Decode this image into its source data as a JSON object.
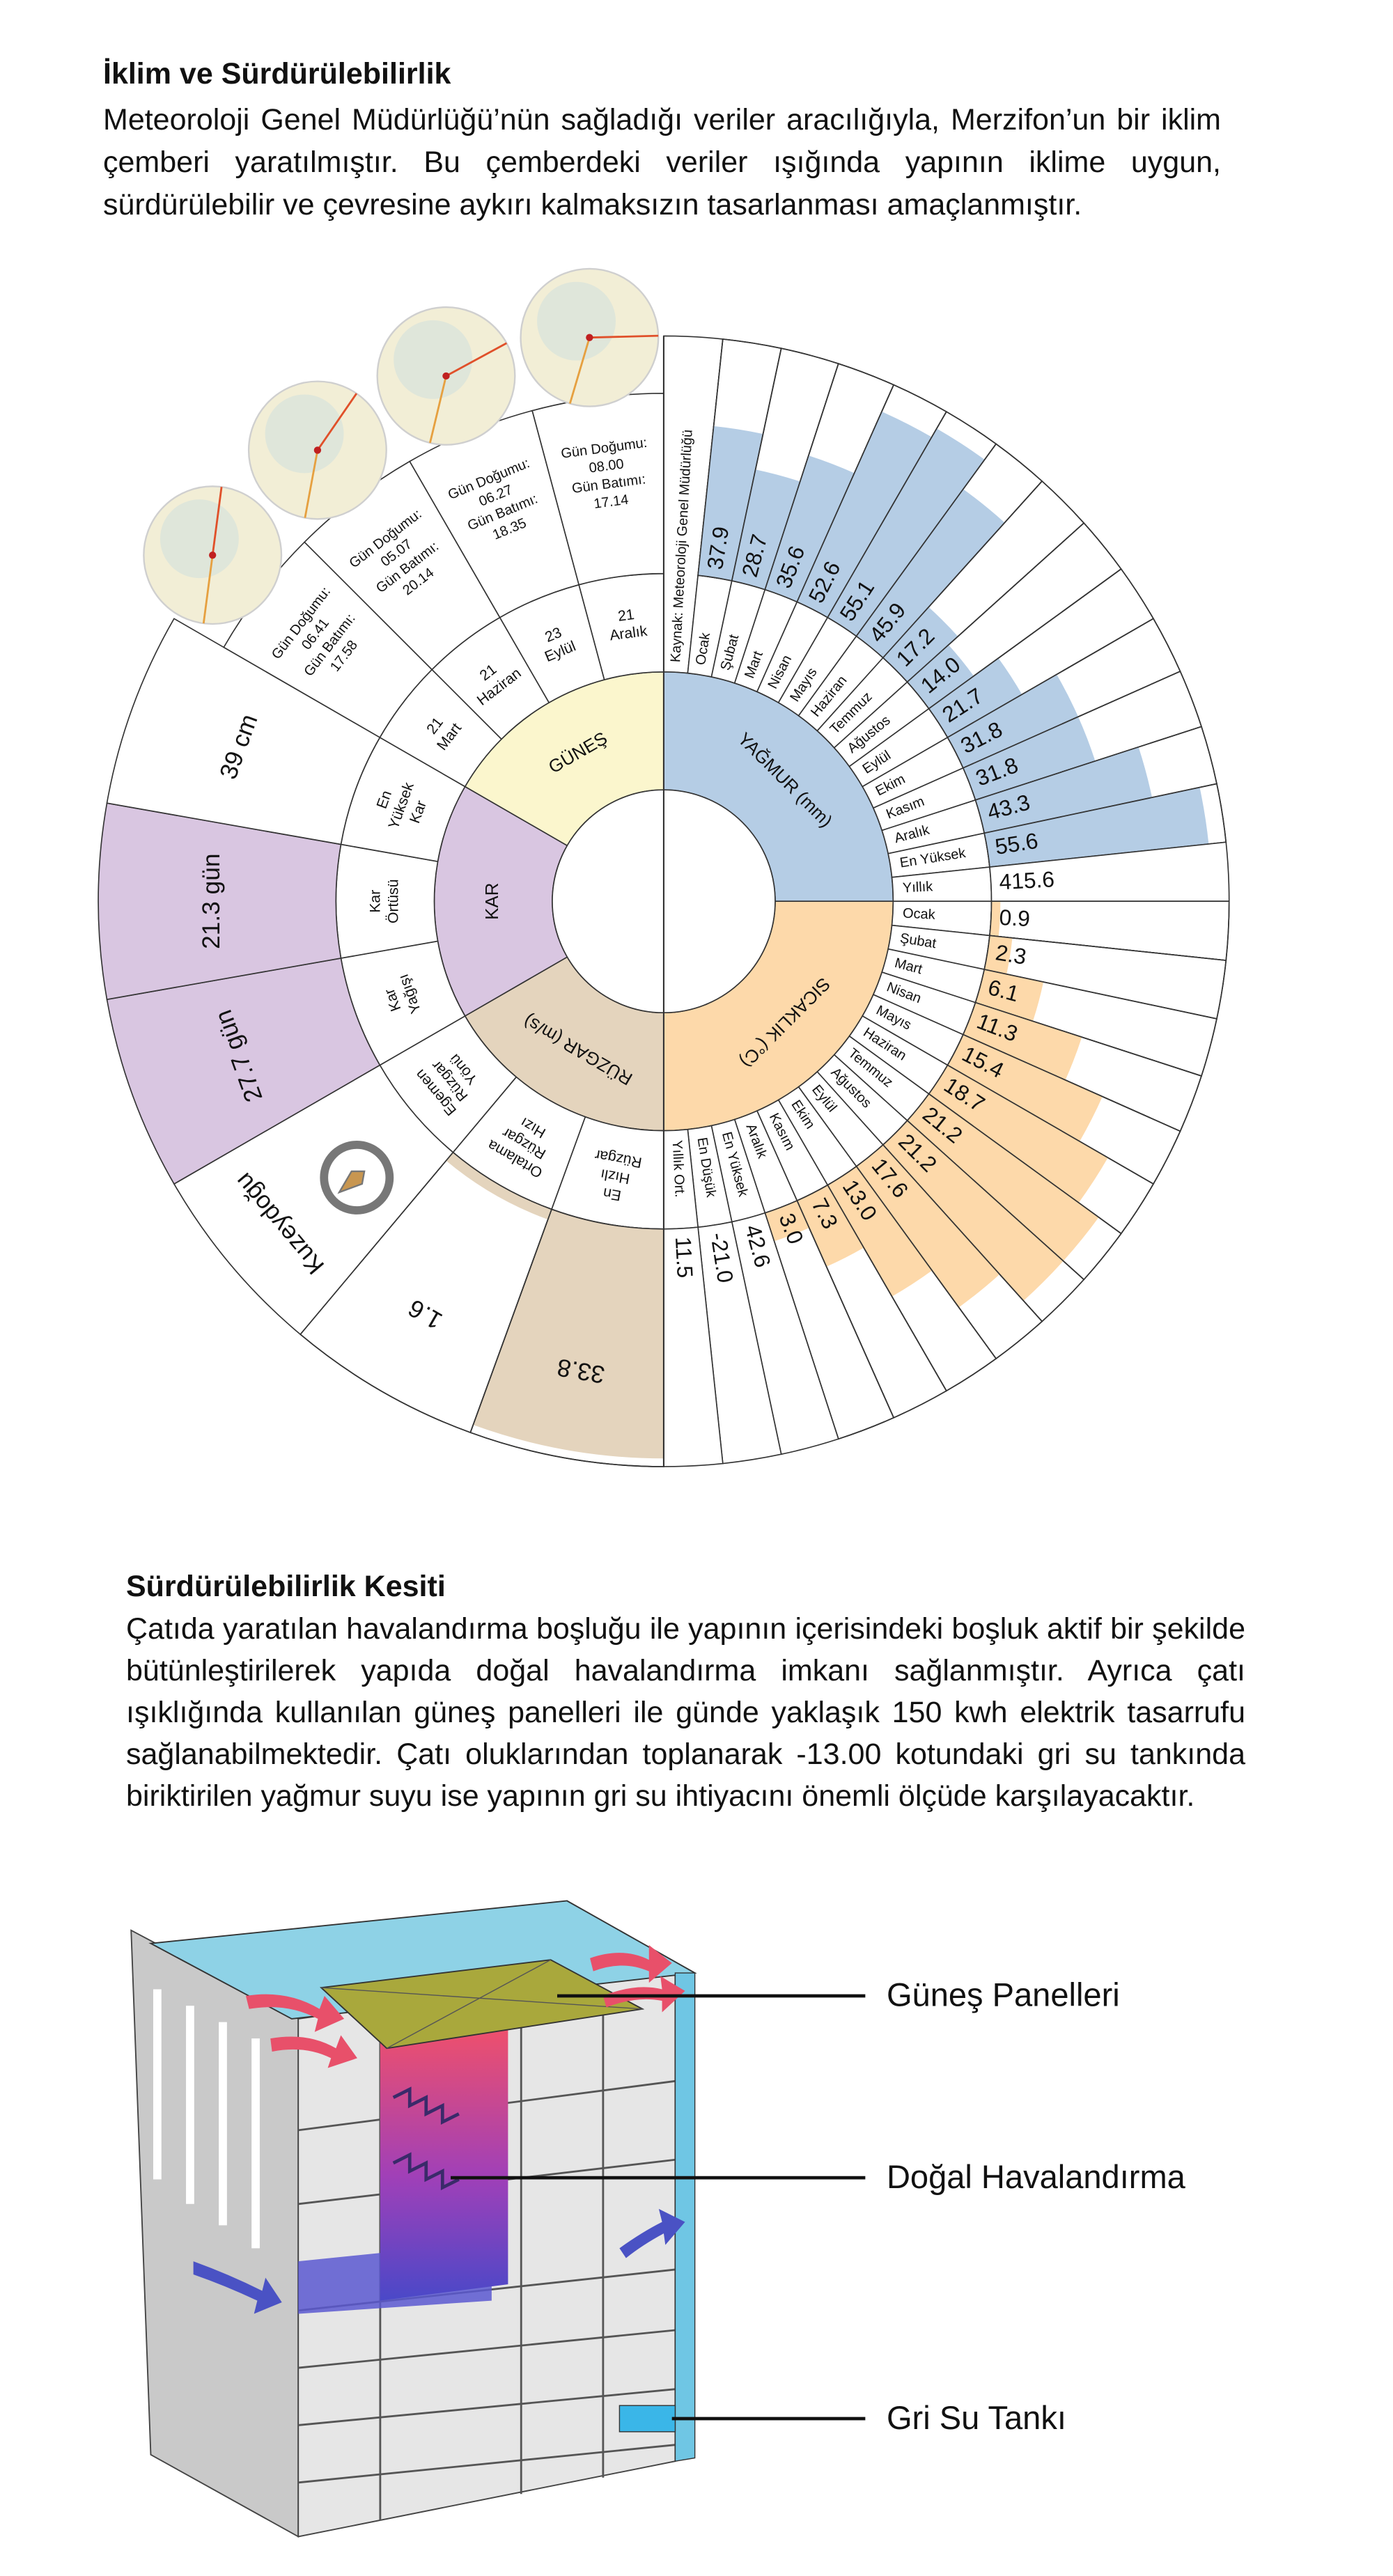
{
  "climate": {
    "title": "İklim ve Sürdürülebilirlik",
    "text": "Meteoroloji Genel Müdürlüğü’nün sağladığı veriler aracılığıyla, Merzifon’un bir iklim çemberi yaratılmıştır. Bu çemberdeki veriler ışığında yapının iklime uygun, sürdürülebilir ve çevresine aykırı kalmaksızın tasarlanması amaçlanmıştır."
  },
  "wheel": {
    "source": "Kaynak: Meteoroloji Genel Müdürlüğü",
    "colors": {
      "rain": "#b5cde5",
      "temperature": "#fdd9aa",
      "snow": "#d9c6e1",
      "wind": "#e4d4bd",
      "sun": "#fbf6cd"
    },
    "rain": {
      "label": "YAĞMUR (mm)",
      "months": [
        {
          "label": "Ocak",
          "value": "37.9"
        },
        {
          "label": "Şubat",
          "value": "28.7"
        },
        {
          "label": "Mart",
          "value": "35.6"
        },
        {
          "label": "Nisan",
          "value": "52.6"
        },
        {
          "label": "Mayıs",
          "value": "55.1"
        },
        {
          "label": "Haziran",
          "value": "45.9"
        },
        {
          "label": "Temmuz",
          "value": "17.2"
        },
        {
          "label": "Ağustos",
          "value": "14.0"
        },
        {
          "label": "Eylül",
          "value": "21.7"
        },
        {
          "label": "Ekim",
          "value": "31.8"
        },
        {
          "label": "Kasım",
          "value": "31.8"
        },
        {
          "label": "Aralık",
          "value": "43.3"
        }
      ],
      "max": {
        "label": "En Yüksek",
        "value": "55.6"
      },
      "annual": {
        "label": "Yıllık",
        "value": "415.6"
      }
    },
    "temperature": {
      "label": "SICAKLIK (°C)",
      "months": [
        {
          "label": "Ocak",
          "value": "0.9"
        },
        {
          "label": "Şubat",
          "value": "2.3"
        },
        {
          "label": "Mart",
          "value": "6.1"
        },
        {
          "label": "Nisan",
          "value": "11.3"
        },
        {
          "label": "Mayıs",
          "value": "15.4"
        },
        {
          "label": "Haziran",
          "value": "18.7"
        },
        {
          "label": "Temmuz",
          "value": "21.2"
        },
        {
          "label": "Ağustos",
          "value": "21.2"
        },
        {
          "label": "Eylül",
          "value": "17.6"
        },
        {
          "label": "Ekim",
          "value": "13.0"
        },
        {
          "label": "Kasım",
          "value": "7.3"
        },
        {
          "label": "Aralık",
          "value": "3.0"
        }
      ],
      "max": {
        "label": "En Yüksek",
        "value": "42.6"
      },
      "min": {
        "label": "En Düşük",
        "value": "-21.0"
      },
      "mean": {
        "label": "Yıllık Ort.",
        "value": "11.5"
      }
    },
    "wind": {
      "label": "RÜZGAR (m/s)",
      "rows": [
        {
          "label": [
            "En",
            "Hızlı",
            "Rüzgar"
          ],
          "value": "33.8"
        },
        {
          "label": [
            "Ortalama",
            "Rüzgar",
            "Hızı"
          ],
          "value": "1.6"
        },
        {
          "label": [
            "Egemen",
            "Rüzgar",
            "Yönü"
          ],
          "value": "Kuzeydoğu"
        }
      ]
    },
    "snow": {
      "label": "KAR",
      "rows": [
        {
          "label": [
            "Kar",
            "Yağışı"
          ],
          "value": "27.7 gün"
        },
        {
          "label": [
            "Kar",
            "Örtüsü"
          ],
          "value": "21.3 gün"
        },
        {
          "label": [
            "En",
            "Yüksek",
            "Kar"
          ],
          "value": "39 cm"
        }
      ]
    },
    "sun": {
      "label": "GÜNEŞ",
      "sunrise_label": "Gün Doğumu:",
      "sunset_label": "Gün Batımı:",
      "rows": [
        {
          "label": [
            "21",
            "Mart"
          ],
          "sunrise": "06.41",
          "sunset": "17.58"
        },
        {
          "label": [
            "21",
            "Haziran"
          ],
          "sunrise": "05.07",
          "sunset": "20.14"
        },
        {
          "label": [
            "23",
            "Eylül"
          ],
          "sunrise": "06.27",
          "sunset": "18.35"
        },
        {
          "label": [
            "21",
            "Aralık"
          ],
          "sunrise": "08.00",
          "sunset": "17.14"
        }
      ]
    }
  },
  "section": {
    "title": "Sürdürülebilirlik Kesiti",
    "text": "Çatıda yaratılan havalandırma boşluğu ile yapının içerisindeki boşluk aktif bir şekilde bütünleştirilerek yapıda doğal havalandırma imkanı sağlanmıştır. Ayrıca çatı ışıklığında kullanılan güneş panelleri ile günde yaklaşık 150 kwh elektrik tasarrufu sağlanabilmektedir. Çatı oluklarından toplanarak -13.00 kotundaki gri su tankında biriktirilen yağmur suyu ise yapının gri su ihtiyacını önemli ölçüde karşılayacaktır.",
    "labels": [
      "Güneş Panelleri",
      "Doğal Havalandırma",
      "Gri Su Tankı"
    ]
  }
}
